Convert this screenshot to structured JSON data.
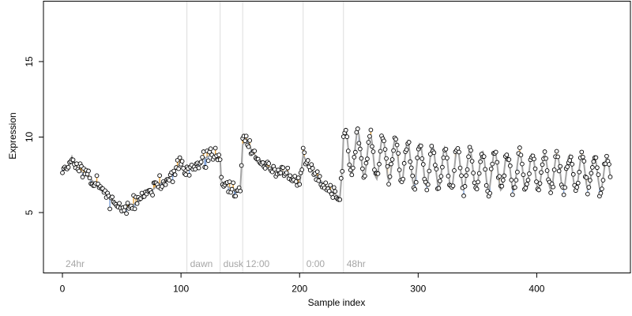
{
  "chart_data": {
    "type": "scatter",
    "xlabel": "Sample index",
    "ylabel": "Expression",
    "xlim": [
      -16,
      479
    ],
    "ylim": [
      1,
      19
    ],
    "x_ticks": [
      0,
      100,
      200,
      300,
      400
    ],
    "y_ticks": [
      5,
      10,
      15
    ],
    "grid": false,
    "colors": {
      "upper_residual": "#e8a33a",
      "lower_residual": "#7b9fd6",
      "fitted_line": "#a3a3a3",
      "separator": "#dcdcdc",
      "section_label": "#a6a6a6",
      "point_fill": "#ffffff",
      "point_stroke": "#000000"
    },
    "sections": [
      {
        "label": "24hr",
        "x": 0
      },
      {
        "label": "dawn",
        "x": 105
      },
      {
        "label": "dusk",
        "x": 133
      },
      {
        "label": "12:00",
        "x": 152
      },
      {
        "label": "0:00",
        "x": 203
      },
      {
        "label": "48hr",
        "x": 237
      }
    ],
    "keyframes": [
      [
        0,
        8.0
      ],
      [
        5,
        8.1
      ],
      [
        8,
        8.7
      ],
      [
        12,
        7.9
      ],
      [
        18,
        7.6
      ],
      [
        24,
        7.2
      ],
      [
        28,
        6.9
      ],
      [
        32,
        6.6
      ],
      [
        38,
        6.1
      ],
      [
        45,
        5.6
      ],
      [
        52,
        5.2
      ],
      [
        58,
        5.4
      ],
      [
        64,
        5.8
      ],
      [
        70,
        6.2
      ],
      [
        76,
        6.5
      ],
      [
        82,
        6.9
      ],
      [
        88,
        7.1
      ],
      [
        92,
        7.5
      ],
      [
        96,
        7.9
      ],
      [
        100,
        8.3
      ],
      [
        103,
        7.6
      ],
      [
        106,
        7.8
      ],
      [
        110,
        8.0
      ],
      [
        115,
        8.3
      ],
      [
        120,
        8.6
      ],
      [
        125,
        8.8
      ],
      [
        130,
        8.7
      ],
      [
        133,
        8.5
      ],
      [
        134,
        7.1
      ],
      [
        138,
        6.8
      ],
      [
        142,
        6.6
      ],
      [
        146,
        6.4
      ],
      [
        150,
        6.6
      ],
      [
        152,
        9.5
      ],
      [
        156,
        9.8
      ],
      [
        160,
        9.0
      ],
      [
        165,
        8.6
      ],
      [
        170,
        8.2
      ],
      [
        175,
        7.9
      ],
      [
        180,
        7.6
      ],
      [
        185,
        7.8
      ],
      [
        190,
        7.5
      ],
      [
        195,
        7.1
      ],
      [
        200,
        6.8
      ],
      [
        203,
        8.8
      ],
      [
        207,
        8.2
      ],
      [
        212,
        7.6
      ],
      [
        218,
        7.1
      ],
      [
        224,
        6.6
      ],
      [
        230,
        6.2
      ],
      [
        234,
        6.0
      ],
      [
        237,
        9.0
      ]
    ],
    "oscillation": {
      "x_start": 237,
      "x_end": 462,
      "points": 225,
      "base_start": 9.1,
      "base_end": 7.2,
      "period": 10.5,
      "amp_start": 1.5,
      "amp_end": 1.1,
      "phase": 0.6
    }
  }
}
